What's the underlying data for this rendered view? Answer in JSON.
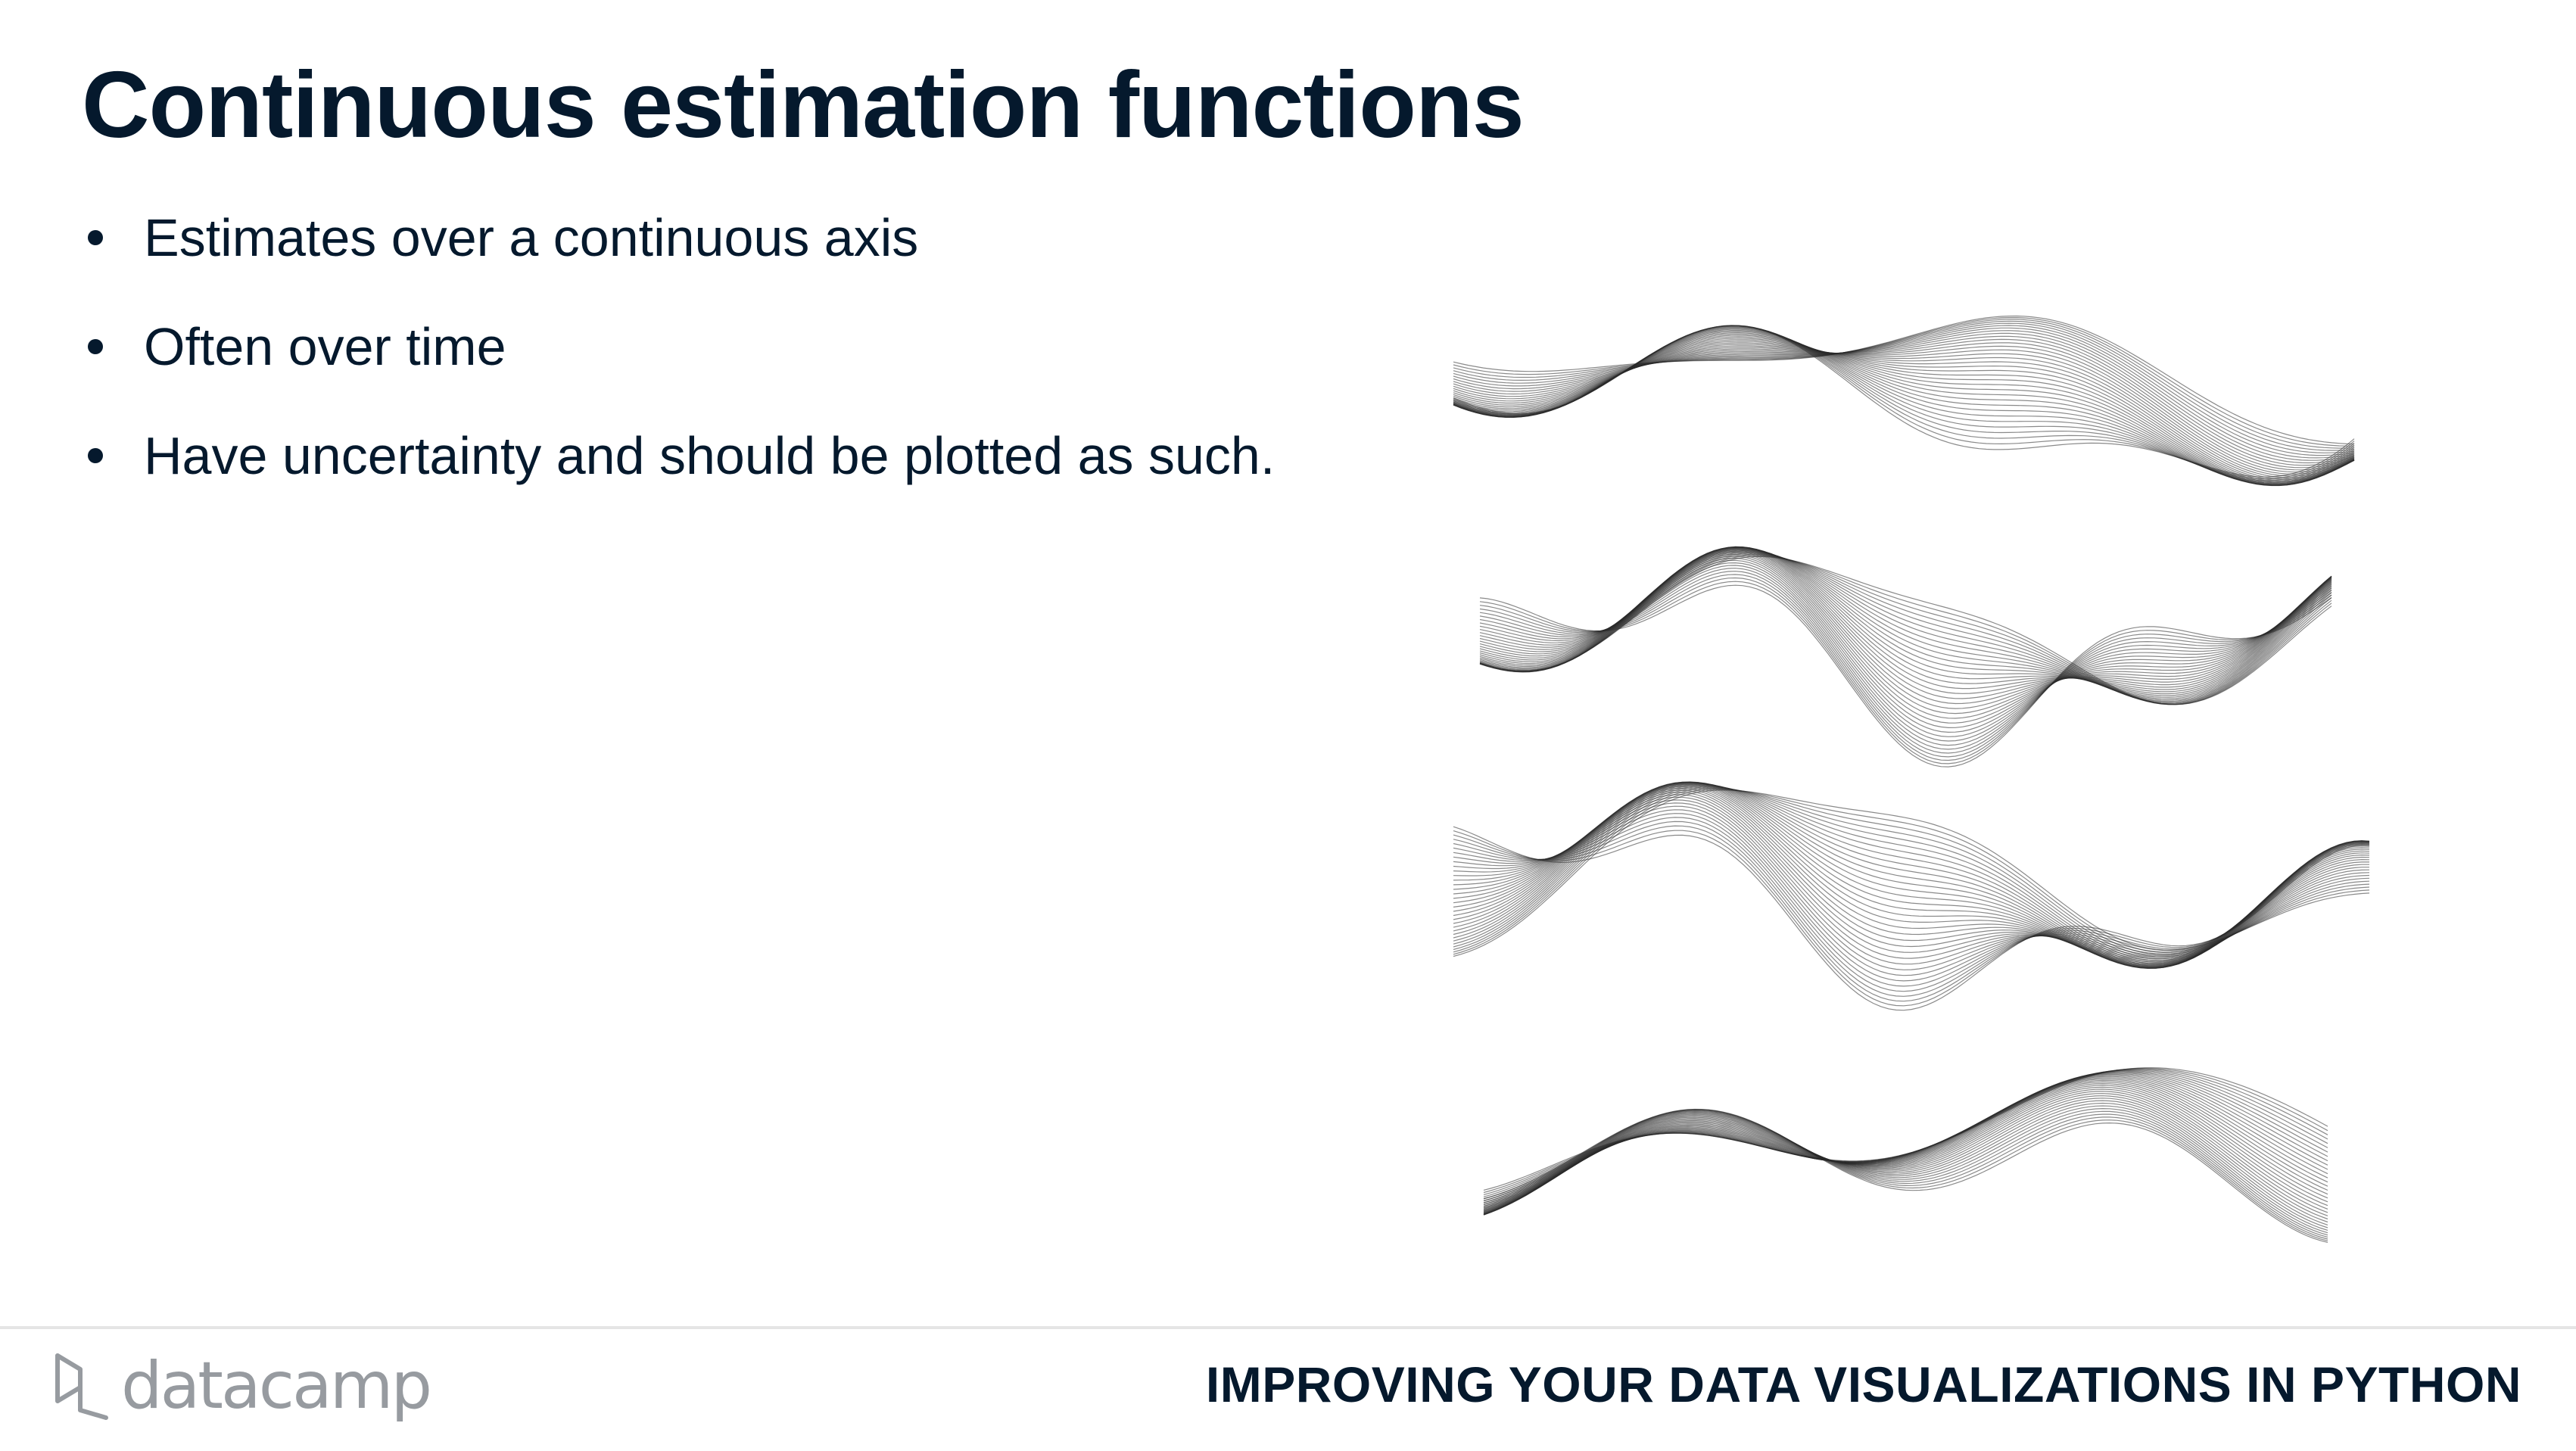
{
  "slide": {
    "title": "Continuous estimation functions",
    "bullets": [
      "Estimates over a continuous axis",
      "Often over time",
      "Have uncertainty and should be plotted as such."
    ]
  },
  "footer": {
    "logo_text": "datacamp",
    "course_title": "IMPROVING YOUR DATA VISUALIZATIONS IN PYTHON"
  },
  "colors": {
    "text": "#05192d",
    "logo": "#979ba0",
    "divider": "#e5e5e5",
    "wave_lines": "#2a2a2a"
  }
}
